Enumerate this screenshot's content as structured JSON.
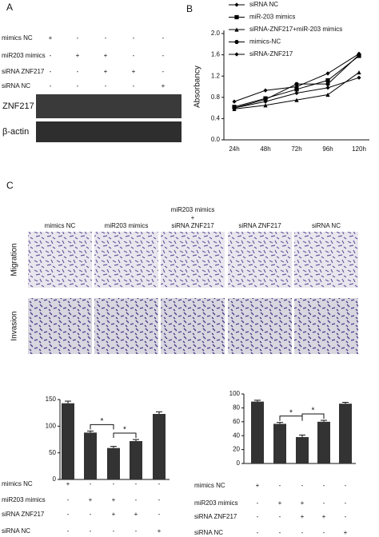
{
  "panels": [
    "A",
    "B",
    "C"
  ],
  "blot": {
    "conditions": [
      {
        "label": "mimics NC",
        "signs": [
          "+",
          "-",
          "-",
          "-",
          "-"
        ]
      },
      {
        "label": "miR203 mimics",
        "signs": [
          "-",
          "+",
          "+",
          "-",
          "-"
        ]
      },
      {
        "label": "siRNA ZNF217",
        "signs": [
          "-",
          "-",
          "+",
          "+",
          "-"
        ]
      },
      {
        "label": "siRNA NC",
        "signs": [
          "-",
          "-",
          "-",
          "-",
          "+"
        ]
      }
    ],
    "bands": [
      "ZNF217",
      "β-actin"
    ]
  },
  "images": {
    "columns": [
      [
        "mimics NC"
      ],
      [
        "miR203 mimics"
      ],
      [
        "miR203 mimics",
        "+",
        "siRNA ZNF217"
      ],
      [
        "siRNA ZNF217"
      ],
      [
        "siRNA NC"
      ]
    ],
    "rows": [
      "Migration",
      "Invasion"
    ]
  },
  "chart_data": [
    {
      "type": "line",
      "y_label": "Absorbancy",
      "categories": [
        "24h",
        "48h",
        "72h",
        "96h",
        "120h"
      ],
      "ylim": [
        0,
        2
      ],
      "yticks": [
        {
          "value": 0,
          "label": "0.0"
        },
        0.4,
        0.8,
        1.2,
        1.6,
        {
          "value": 2,
          "label": "2.0"
        }
      ],
      "series": [
        {
          "name": "siRNA NC",
          "color": "#000000",
          "marker": "diamond",
          "values": [
            0.72,
            0.93,
            1.0,
            1.25,
            1.62
          ]
        },
        {
          "name": "miR-203 mimics",
          "color": "#000000",
          "marker": "square",
          "values": [
            0.62,
            0.78,
            0.95,
            1.12,
            1.58
          ]
        },
        {
          "name": "siRNA-ZNF217+miR-203 mimics",
          "color": "#000000",
          "marker": "triangle",
          "values": [
            0.58,
            0.65,
            0.75,
            0.85,
            1.27
          ]
        },
        {
          "name": "mimics-NC",
          "color": "#000000",
          "marker": "circle",
          "values": [
            0.6,
            0.76,
            1.05,
            1.05,
            1.6
          ]
        },
        {
          "name": "siRNA-ZNF217",
          "color": "#000000",
          "marker": "diamond",
          "values": [
            0.6,
            0.72,
            0.88,
            0.98,
            1.17
          ]
        }
      ]
    },
    {
      "type": "bar",
      "categories": [
        null,
        null,
        null,
        null,
        null
      ],
      "values": [
        143,
        88,
        59,
        72,
        123
      ],
      "errors": [
        4,
        3,
        3,
        3,
        4
      ],
      "color": "#333333",
      "ylim": [
        0,
        150
      ],
      "yticks": [
        0,
        50,
        100,
        150
      ],
      "annotations": [
        "*",
        "*"
      ],
      "conditions": [
        {
          "label": "mimics NC",
          "signs": [
            "+",
            "-",
            "-",
            "-",
            "-"
          ]
        },
        {
          "label": "miR203 mimics",
          "signs": [
            "-",
            "+",
            "+",
            "-",
            "-"
          ]
        },
        {
          "label": "siRNA ZNF217",
          "signs": [
            "-",
            "-",
            "+",
            "+",
            "-"
          ]
        },
        {
          "label": "siRNA NC",
          "signs": [
            "-",
            "-",
            "-",
            "-",
            "+"
          ]
        }
      ]
    },
    {
      "type": "bar",
      "categories": [
        null,
        null,
        null,
        null,
        null
      ],
      "values": [
        89,
        57,
        38,
        60,
        86
      ],
      "errors": [
        2,
        2,
        3,
        2,
        2
      ],
      "color": "#333333",
      "ylim": [
        0,
        100
      ],
      "yticks": [
        0,
        20,
        40,
        60,
        80,
        100
      ],
      "annotations": [
        "*",
        "*"
      ],
      "conditions": [
        {
          "label": "mimics NC",
          "signs": [
            "+",
            "-",
            "-",
            "-",
            "-"
          ]
        },
        {
          "label": "miR203 mimics",
          "signs": [
            "-",
            "+",
            "+",
            "-",
            "-"
          ]
        },
        {
          "label": "siRNA ZNF217",
          "signs": [
            "-",
            "-",
            "+",
            "+",
            "-"
          ]
        },
        {
          "label": "siRNA NC",
          "signs": [
            "-",
            "-",
            "-",
            "-",
            "+"
          ]
        }
      ]
    }
  ]
}
